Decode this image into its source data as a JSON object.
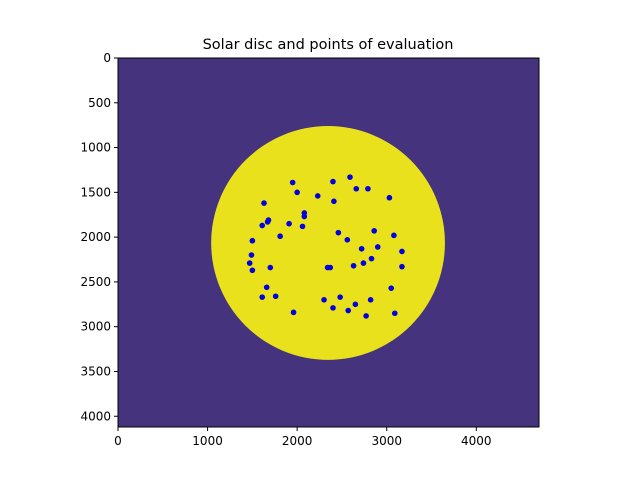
{
  "chart_data": {
    "type": "scatter",
    "title": "Solar disc and points of evaluation",
    "xlabel": "",
    "ylabel": "",
    "xlim": [
      0,
      4700
    ],
    "ylim": [
      4120,
      0
    ],
    "y_inverted": true,
    "xticks": [
      0,
      1000,
      2000,
      3000,
      4000
    ],
    "yticks": [
      0,
      500,
      1000,
      1500,
      2000,
      2500,
      3000,
      3500,
      4000
    ],
    "grid": false,
    "legend": "none",
    "background_image": {
      "kind": "image",
      "background_color": "#46337e",
      "disc": {
        "center_x": 2345,
        "center_y": 2065,
        "radius": 1305,
        "color": "#e8e11c"
      }
    },
    "points": [
      {
        "x": 1950,
        "y": 1390
      },
      {
        "x": 2400,
        "y": 1380
      },
      {
        "x": 2590,
        "y": 1330
      },
      {
        "x": 2660,
        "y": 1460
      },
      {
        "x": 2790,
        "y": 1460
      },
      {
        "x": 2000,
        "y": 1500
      },
      {
        "x": 2230,
        "y": 1540
      },
      {
        "x": 2410,
        "y": 1600
      },
      {
        "x": 3030,
        "y": 1560
      },
      {
        "x": 1630,
        "y": 1620
      },
      {
        "x": 2080,
        "y": 1730
      },
      {
        "x": 2080,
        "y": 1770
      },
      {
        "x": 1680,
        "y": 1810
      },
      {
        "x": 1670,
        "y": 1830
      },
      {
        "x": 1910,
        "y": 1850
      },
      {
        "x": 1610,
        "y": 1870
      },
      {
        "x": 2060,
        "y": 1880
      },
      {
        "x": 2860,
        "y": 1930
      },
      {
        "x": 2460,
        "y": 1950
      },
      {
        "x": 3080,
        "y": 1980
      },
      {
        "x": 1810,
        "y": 1990
      },
      {
        "x": 2560,
        "y": 2030
      },
      {
        "x": 1500,
        "y": 2040
      },
      {
        "x": 2900,
        "y": 2110
      },
      {
        "x": 2720,
        "y": 2130
      },
      {
        "x": 3170,
        "y": 2160
      },
      {
        "x": 1490,
        "y": 2200
      },
      {
        "x": 2830,
        "y": 2240
      },
      {
        "x": 1470,
        "y": 2290
      },
      {
        "x": 2740,
        "y": 2290
      },
      {
        "x": 2630,
        "y": 2320
      },
      {
        "x": 3170,
        "y": 2330
      },
      {
        "x": 1700,
        "y": 2340
      },
      {
        "x": 2340,
        "y": 2340
      },
      {
        "x": 2370,
        "y": 2340
      },
      {
        "x": 1500,
        "y": 2370
      },
      {
        "x": 1660,
        "y": 2560
      },
      {
        "x": 3050,
        "y": 2570
      },
      {
        "x": 1760,
        "y": 2660
      },
      {
        "x": 1610,
        "y": 2670
      },
      {
        "x": 2480,
        "y": 2670
      },
      {
        "x": 2300,
        "y": 2700
      },
      {
        "x": 2820,
        "y": 2700
      },
      {
        "x": 2650,
        "y": 2750
      },
      {
        "x": 2400,
        "y": 2790
      },
      {
        "x": 2570,
        "y": 2820
      },
      {
        "x": 1960,
        "y": 2840
      },
      {
        "x": 3090,
        "y": 2850
      },
      {
        "x": 2770,
        "y": 2880
      }
    ],
    "marker_color": "#0000e0"
  }
}
